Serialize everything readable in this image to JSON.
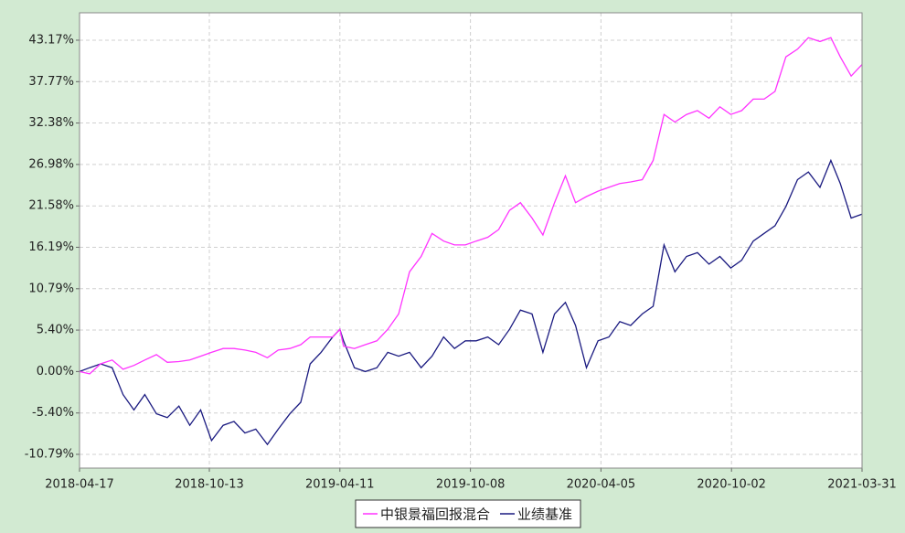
{
  "chart_data": {
    "type": "line",
    "x": [
      "2018-04-17",
      "2018-05-01",
      "2018-05-16",
      "2018-06-01",
      "2018-06-16",
      "2018-07-01",
      "2018-07-16",
      "2018-08-01",
      "2018-08-16",
      "2018-09-01",
      "2018-09-16",
      "2018-10-01",
      "2018-10-16",
      "2018-11-01",
      "2018-11-16",
      "2018-12-01",
      "2018-12-16",
      "2019-01-01",
      "2019-01-16",
      "2019-02-01",
      "2019-02-16",
      "2019-03-01",
      "2019-03-16",
      "2019-04-01",
      "2019-04-11",
      "2019-04-16",
      "2019-05-01",
      "2019-05-16",
      "2019-06-01",
      "2019-06-16",
      "2019-07-01",
      "2019-07-16",
      "2019-08-01",
      "2019-08-16",
      "2019-09-01",
      "2019-09-16",
      "2019-10-01",
      "2019-10-16",
      "2019-11-01",
      "2019-11-16",
      "2019-12-01",
      "2019-12-16",
      "2020-01-01",
      "2020-01-16",
      "2020-02-01",
      "2020-02-16",
      "2020-03-01",
      "2020-03-16",
      "2020-04-01",
      "2020-04-16",
      "2020-05-01",
      "2020-05-16",
      "2020-06-01",
      "2020-06-16",
      "2020-07-01",
      "2020-07-16",
      "2020-08-01",
      "2020-08-16",
      "2020-09-01",
      "2020-09-16",
      "2020-10-01",
      "2020-10-16",
      "2020-11-01",
      "2020-11-16",
      "2020-12-01",
      "2020-12-16",
      "2021-01-01",
      "2021-01-16",
      "2021-02-01",
      "2021-02-16",
      "2021-03-01",
      "2021-03-16",
      "2021-03-31"
    ],
    "series": [
      {
        "name": "中银景福回报混合",
        "color": "#ff33ff",
        "values": [
          0,
          -0.3,
          1.0,
          1.5,
          0.3,
          0.8,
          1.5,
          2.2,
          1.2,
          1.3,
          1.5,
          2.0,
          2.5,
          3.0,
          3.0,
          2.8,
          2.5,
          1.8,
          2.8,
          3.0,
          3.5,
          4.5,
          4.5,
          4.5,
          5.5,
          3.3,
          3.0,
          3.5,
          4.0,
          5.5,
          7.5,
          13.0,
          15.0,
          18.0,
          17.0,
          16.5,
          16.5,
          17.0,
          17.5,
          18.5,
          21.0,
          22.0,
          20.0,
          17.8,
          22.0,
          25.5,
          22.0,
          22.8,
          23.5,
          24.0,
          24.5,
          24.7,
          25.0,
          27.5,
          33.5,
          32.5,
          33.5,
          34.0,
          33.0,
          34.5,
          33.5,
          34.0,
          35.5,
          35.5,
          36.5,
          41.0,
          42.0,
          43.5,
          43.0,
          43.5,
          41.0,
          38.5,
          40.0
        ]
      },
      {
        "name": "业绩基准",
        "color": "#1a1a80",
        "values": [
          0,
          0.5,
          1.0,
          0.5,
          -3.0,
          -5.0,
          -3.0,
          -5.5,
          -6.0,
          -4.5,
          -7.0,
          -5.0,
          -9.0,
          -7.0,
          -6.5,
          -8.0,
          -7.5,
          -9.5,
          -7.5,
          -5.5,
          -4.0,
          1.0,
          2.5,
          4.5,
          5.5,
          4.0,
          0.5,
          0.0,
          0.5,
          2.5,
          2.0,
          2.5,
          0.5,
          2.0,
          4.5,
          3.0,
          4.0,
          4.0,
          4.5,
          3.5,
          5.5,
          8.0,
          7.5,
          2.5,
          7.5,
          9.0,
          6.0,
          0.5,
          4.0,
          4.5,
          6.5,
          6.0,
          7.5,
          8.5,
          16.5,
          13.0,
          15.0,
          15.5,
          14.0,
          15.0,
          13.5,
          14.5,
          17.0,
          18.0,
          19.0,
          21.5,
          25.0,
          26.0,
          24.0,
          27.5,
          24.5,
          20.0,
          20.5
        ]
      }
    ],
    "xlim": [
      "2018-04-17",
      "2021-03-31"
    ],
    "xticks": [
      "2018-04-17",
      "2018-10-13",
      "2019-04-11",
      "2019-10-08",
      "2020-04-05",
      "2020-10-02",
      "2021-03-31"
    ],
    "ylim": [
      -12.58,
      46.74
    ],
    "yticks": [
      {
        "value": -10.79,
        "label": "-10.79%"
      },
      {
        "value": -5.4,
        "label": "-5.40%"
      },
      {
        "value": 0,
        "label": "0.00%"
      },
      {
        "value": 5.4,
        "label": "5.40%"
      },
      {
        "value": 10.79,
        "label": "10.79%"
      },
      {
        "value": 16.19,
        "label": "16.19%"
      },
      {
        "value": 21.58,
        "label": "21.58%"
      },
      {
        "value": 26.98,
        "label": "26.98%"
      },
      {
        "value": 32.38,
        "label": "32.38%"
      },
      {
        "value": 37.77,
        "label": "37.77%"
      },
      {
        "value": 43.17,
        "label": "43.17%"
      }
    ],
    "grid": true,
    "legend": "bottom"
  }
}
